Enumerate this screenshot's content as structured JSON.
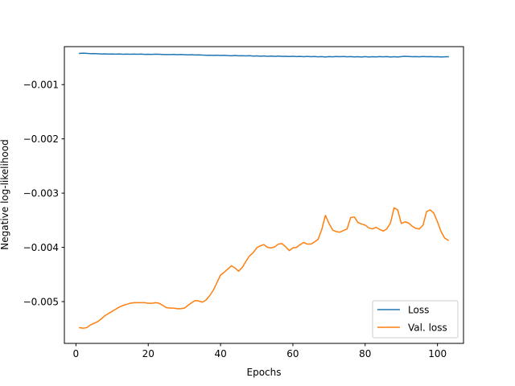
{
  "chart_data": {
    "type": "line",
    "title": "",
    "xlabel": "Epochs",
    "ylabel": "Negative log-likelihood",
    "xlim": [
      -3.2,
      107.2
    ],
    "ylim": [
      -0.00577,
      -0.0003
    ],
    "xticks": [
      0,
      20,
      40,
      60,
      80,
      100
    ],
    "xtick_labels": [
      "0",
      "20",
      "40",
      "60",
      "80",
      "100"
    ],
    "yticks": [
      -0.005,
      -0.004,
      -0.003,
      -0.002,
      -0.001
    ],
    "ytick_labels": [
      "−0.005",
      "−0.004",
      "−0.003",
      "−0.002",
      "−0.001"
    ],
    "grid": false,
    "legend_position": "lower-right",
    "series": [
      {
        "name": "Loss",
        "color": "#1f77b4",
        "x": [
          1,
          2,
          3,
          4,
          5,
          6,
          7,
          8,
          9,
          10,
          11,
          12,
          13,
          14,
          15,
          16,
          17,
          18,
          19,
          20,
          21,
          22,
          23,
          24,
          25,
          26,
          27,
          28,
          29,
          30,
          31,
          32,
          33,
          34,
          35,
          36,
          37,
          38,
          39,
          40,
          41,
          42,
          43,
          44,
          45,
          46,
          47,
          48,
          49,
          50,
          51,
          52,
          53,
          54,
          55,
          56,
          57,
          58,
          59,
          60,
          61,
          62,
          63,
          64,
          65,
          66,
          67,
          68,
          69,
          70,
          71,
          72,
          73,
          74,
          75,
          76,
          77,
          78,
          79,
          80,
          81,
          82,
          83,
          84,
          85,
          86,
          87,
          88,
          89,
          90,
          91,
          92,
          93,
          94,
          95,
          96,
          97,
          98,
          99,
          100,
          101,
          102,
          103
        ],
        "y": [
          -0.000425,
          -0.00042,
          -0.000425,
          -0.00043,
          -0.000428,
          -0.000432,
          -0.000435,
          -0.000433,
          -0.000437,
          -0.000436,
          -0.000439,
          -0.000435,
          -0.00044,
          -0.000438,
          -0.000441,
          -0.000437,
          -0.00044,
          -0.000438,
          -0.000442,
          -0.00044,
          -0.000443,
          -0.000439,
          -0.000441,
          -0.000444,
          -0.000447,
          -0.000446,
          -0.000443,
          -0.000448,
          -0.000445,
          -0.000449,
          -0.000452,
          -0.000449,
          -0.000454,
          -0.000451,
          -0.000456,
          -0.000459,
          -0.000457,
          -0.000461,
          -0.000458,
          -0.000463,
          -0.00046,
          -0.000465,
          -0.000468,
          -0.000464,
          -0.000469,
          -0.000466,
          -0.000471,
          -0.000467,
          -0.000474,
          -0.00047,
          -0.000476,
          -0.000472,
          -0.000478,
          -0.000474,
          -0.000479,
          -0.000475,
          -0.00048,
          -0.000477,
          -0.000482,
          -0.000478,
          -0.000483,
          -0.000479,
          -0.000485,
          -0.00048,
          -0.000486,
          -0.000482,
          -0.000488,
          -0.000483,
          -0.00049,
          -0.000484,
          -0.000488,
          -0.000482,
          -0.000486,
          -0.000481,
          -0.000487,
          -0.000483,
          -0.000489,
          -0.000485,
          -0.00049,
          -0.000484,
          -0.000491,
          -0.000486,
          -0.000489,
          -0.000484,
          -0.000488,
          -0.000483,
          -0.00049,
          -0.000485,
          -0.000491,
          -0.000484,
          -0.000478,
          -0.000482,
          -0.000486,
          -0.000483,
          -0.000487,
          -0.000481,
          -0.000485,
          -0.000484,
          -0.000488,
          -0.000485,
          -0.00049,
          -0.000487,
          -0.000486
        ]
      },
      {
        "name": "Val. loss",
        "color": "#ff7f0e",
        "x": [
          1,
          2,
          3,
          4,
          5,
          6,
          7,
          8,
          9,
          10,
          11,
          12,
          13,
          14,
          15,
          16,
          17,
          18,
          19,
          20,
          21,
          22,
          23,
          24,
          25,
          26,
          27,
          28,
          29,
          30,
          31,
          32,
          33,
          34,
          35,
          36,
          37,
          38,
          39,
          40,
          41,
          42,
          43,
          44,
          45,
          46,
          47,
          48,
          49,
          50,
          51,
          52,
          53,
          54,
          55,
          56,
          57,
          58,
          59,
          60,
          61,
          62,
          63,
          64,
          65,
          66,
          67,
          68,
          69,
          70,
          71,
          72,
          73,
          74,
          75,
          76,
          77,
          78,
          79,
          80,
          81,
          82,
          83,
          84,
          85,
          86,
          87,
          88,
          89,
          90,
          91,
          92,
          93,
          94,
          95,
          96,
          97,
          98,
          99,
          100,
          101,
          102,
          103
        ],
        "y": [
          -0.00548,
          -0.00549,
          -0.00548,
          -0.00543,
          -0.0054,
          -0.00537,
          -0.00532,
          -0.00526,
          -0.00522,
          -0.00518,
          -0.00514,
          -0.0051,
          -0.00507,
          -0.00505,
          -0.00503,
          -0.00502,
          -0.00502,
          -0.00502,
          -0.00502,
          -0.00503,
          -0.00503,
          -0.00502,
          -0.00503,
          -0.00507,
          -0.00511,
          -0.00512,
          -0.00512,
          -0.00513,
          -0.00513,
          -0.00512,
          -0.00507,
          -0.00502,
          -0.00498,
          -0.00499,
          -0.00501,
          -0.00497,
          -0.00489,
          -0.00479,
          -0.00465,
          -0.00451,
          -0.00446,
          -0.0044,
          -0.00434,
          -0.00438,
          -0.00444,
          -0.00437,
          -0.00426,
          -0.00416,
          -0.0041,
          -0.00401,
          -0.00397,
          -0.00395,
          -0.004,
          -0.00401,
          -0.00399,
          -0.00394,
          -0.00393,
          -0.00399,
          -0.00406,
          -0.00401,
          -0.004,
          -0.00395,
          -0.00391,
          -0.00394,
          -0.00394,
          -0.0039,
          -0.00385,
          -0.00367,
          -0.00341,
          -0.00356,
          -0.00368,
          -0.00371,
          -0.00372,
          -0.00369,
          -0.00366,
          -0.00345,
          -0.00344,
          -0.00354,
          -0.00357,
          -0.00359,
          -0.00364,
          -0.00366,
          -0.00363,
          -0.00367,
          -0.0037,
          -0.00366,
          -0.00355,
          -0.00327,
          -0.00331,
          -0.00356,
          -0.00353,
          -0.00355,
          -0.00361,
          -0.00365,
          -0.00366,
          -0.00359,
          -0.00334,
          -0.00331,
          -0.00337,
          -0.00353,
          -0.00371,
          -0.00383,
          -0.00387
        ]
      }
    ]
  }
}
